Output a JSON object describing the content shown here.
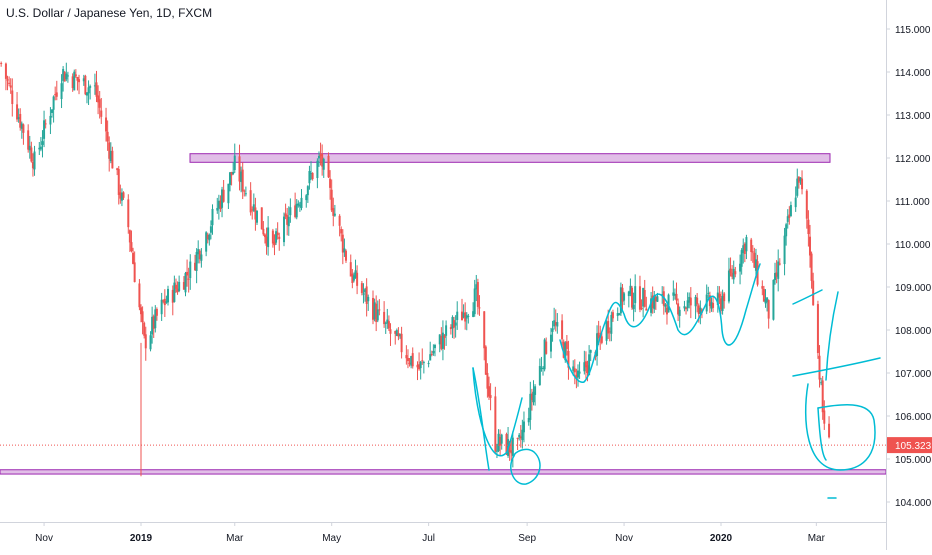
{
  "header": {
    "title": "U.S. Dollar / Japanese Yen, 1D, FXCM"
  },
  "colors": {
    "up": "#26a69a",
    "down": "#ef5350",
    "zone_fill": "#e1bee7",
    "zone_stroke": "#9c27b0",
    "drawing": "#00bcd4",
    "price_line": "#ef5350",
    "badge": "#ef5350"
  },
  "chart_data": {
    "type": "candlestick",
    "title": "U.S. Dollar / Japanese Yen, 1D, FXCM",
    "ylim": [
      103.4,
      115.9
    ],
    "y_ticks": [
      "104.000",
      "105.000",
      "106.000",
      "107.000",
      "108.000",
      "109.000",
      "110.000",
      "111.000",
      "112.000",
      "113.000",
      "114.000",
      "115.000"
    ],
    "x_ticks": [
      {
        "label": "Nov",
        "date": "2018-11-01",
        "bold": false
      },
      {
        "label": "2019",
        "date": "2019-01-01",
        "bold": true
      },
      {
        "label": "Mar",
        "date": "2019-03-01",
        "bold": false
      },
      {
        "label": "May",
        "date": "2019-05-01",
        "bold": false
      },
      {
        "label": "Jul",
        "date": "2019-07-01",
        "bold": false
      },
      {
        "label": "Sep",
        "date": "2019-09-01",
        "bold": false
      },
      {
        "label": "Nov",
        "date": "2019-11-01",
        "bold": false
      },
      {
        "label": "2020",
        "date": "2020-01-01",
        "bold": true
      },
      {
        "label": "Mar",
        "date": "2020-03-01",
        "bold": false
      }
    ],
    "last_price": "105.323",
    "resistance_zone": [
      111.9,
      112.1
    ],
    "support_zone": [
      104.65,
      104.75
    ],
    "ohlc_approx_path": [
      {
        "date": "2018-10-05",
        "close": 114.2
      },
      {
        "date": "2018-10-26",
        "close": 111.9
      },
      {
        "date": "2018-11-12",
        "close": 114.0
      },
      {
        "date": "2018-12-03",
        "close": 113.6
      },
      {
        "date": "2018-12-24",
        "close": 110.4
      },
      {
        "date": "2019-01-03",
        "close": 107.7
      },
      {
        "date": "2019-01-15",
        "close": 108.6
      },
      {
        "date": "2019-02-01",
        "close": 109.4
      },
      {
        "date": "2019-03-01",
        "close": 111.8
      },
      {
        "date": "2019-03-25",
        "close": 109.9
      },
      {
        "date": "2019-04-24",
        "close": 112.0
      },
      {
        "date": "2019-05-13",
        "close": 109.3
      },
      {
        "date": "2019-06-03",
        "close": 108.1
      },
      {
        "date": "2019-06-25",
        "close": 107.1
      },
      {
        "date": "2019-07-31",
        "close": 108.8
      },
      {
        "date": "2019-08-12",
        "close": 105.4
      },
      {
        "date": "2019-08-26",
        "close": 105.2
      },
      {
        "date": "2019-09-17",
        "close": 108.2
      },
      {
        "date": "2019-10-03",
        "close": 106.8
      },
      {
        "date": "2019-10-31",
        "close": 108.8
      },
      {
        "date": "2019-12-03",
        "close": 108.6
      },
      {
        "date": "2019-12-31",
        "close": 108.6
      },
      {
        "date": "2020-01-17",
        "close": 110.1
      },
      {
        "date": "2020-01-31",
        "close": 108.4
      },
      {
        "date": "2020-02-19",
        "close": 111.6
      },
      {
        "date": "2020-02-25",
        "close": 110.2
      },
      {
        "date": "2020-03-05",
        "close": 106.1
      },
      {
        "date": "2020-03-09",
        "close": 105.3
      }
    ]
  }
}
